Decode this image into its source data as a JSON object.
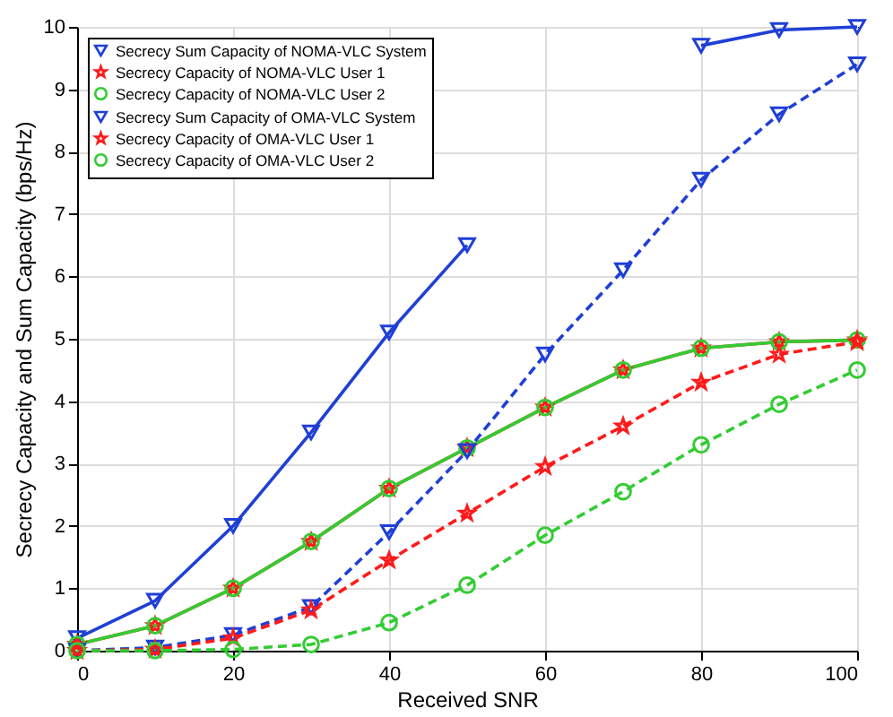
{
  "chart_data": {
    "type": "line",
    "xlabel": "Received SNR",
    "ylabel": "Secrecy Capacity and Sum Capacity (bps/Hz)",
    "x": [
      0,
      10,
      20,
      30,
      40,
      50,
      60,
      70,
      80,
      90,
      100
    ],
    "xlim": [
      0,
      100
    ],
    "xticks": [
      0,
      20,
      40,
      60,
      80,
      100
    ],
    "ylim": [
      0,
      10
    ],
    "yticks": [
      0,
      1,
      2,
      3,
      4,
      5,
      6,
      7,
      8,
      9,
      10
    ],
    "grid": true,
    "legend": "top left",
    "series": [
      {
        "name": "Secrecy Sum Capacity of NOMA-VLC System",
        "color": "#1f3fd6",
        "marker": "triangle",
        "line_style": "solid",
        "values": [
          0.2,
          0.8,
          2.0,
          3.5,
          5.1,
          6.5,
          null,
          null,
          9.7,
          9.95,
          10.0
        ]
      },
      {
        "name": "Secrecy Capacity of NOMA-VLC User 1",
        "color": "#ff1a1a",
        "marker": "star",
        "line_style": "solid",
        "values": [
          0.1,
          0.4,
          1.0,
          1.75,
          2.6,
          3.25,
          3.9,
          4.5,
          4.85,
          4.95,
          4.98
        ]
      },
      {
        "name": "Secrecy Capacity of NOMA-VLC User 2",
        "color": "#33cc33",
        "marker": "circle",
        "line_style": "solid",
        "values": [
          0.1,
          0.4,
          1.0,
          1.75,
          2.6,
          3.25,
          3.9,
          4.5,
          4.85,
          4.95,
          4.98
        ]
      },
      {
        "name": "Secrecy Sum Capacity of OMA-VLC System",
        "color": "#1f3fd6",
        "marker": "triangle",
        "line_style": "dashed",
        "values": [
          0,
          0.05,
          0.25,
          0.7,
          1.9,
          3.2,
          4.75,
          6.1,
          7.55,
          8.6,
          9.4
        ]
      },
      {
        "name": "Secrecy Capacity of OMA-VLC User 1",
        "color": "#ff1a1a",
        "marker": "star",
        "line_style": "dashed",
        "values": [
          0,
          0.02,
          0.2,
          0.65,
          1.45,
          2.2,
          2.95,
          3.6,
          4.3,
          4.75,
          4.95
        ]
      },
      {
        "name": "Secrecy Capacity of OMA-VLC User 2",
        "color": "#33cc33",
        "marker": "circle",
        "line_style": "dashed",
        "values": [
          0,
          0,
          0.02,
          0.1,
          0.45,
          1.05,
          1.85,
          2.55,
          3.3,
          3.95,
          4.5
        ]
      }
    ]
  }
}
